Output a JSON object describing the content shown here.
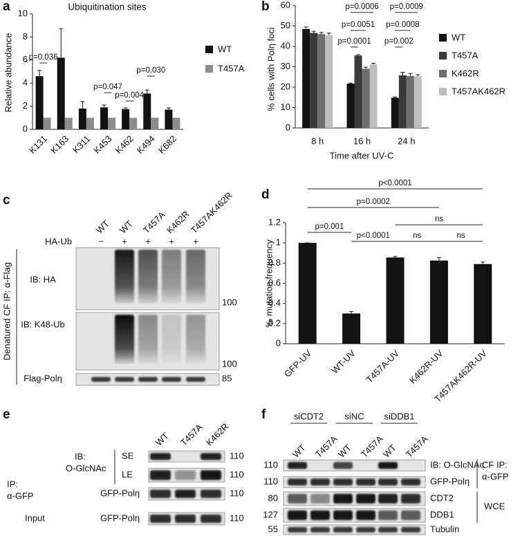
{
  "chart_data": [
    {
      "type": "bar",
      "panel": "a",
      "title": "Ubiquitination sites",
      "y_label": "Relative abundance",
      "categories": [
        "K131",
        "K163",
        "K311",
        "K453",
        "K462",
        "K494",
        "K682"
      ],
      "series": [
        {
          "name": "WT",
          "color": "#111111",
          "values": [
            4.6,
            6.2,
            1.8,
            1.9,
            1.75,
            3.1,
            1.7
          ],
          "errors": [
            0.5,
            2.5,
            0.6,
            0.2,
            0.1,
            0.3,
            0.15
          ]
        },
        {
          "name": "T457A",
          "color": "#8c8c8c",
          "values": [
            1,
            1,
            1,
            1,
            1,
            1,
            1
          ]
        }
      ],
      "ylim": [
        0,
        10
      ],
      "yticks": [
        0,
        2,
        4,
        6,
        8,
        10
      ],
      "annotations": [
        "p=0.036",
        "p=0.047",
        "p=0.004",
        "p=0.030"
      ],
      "legend": "right"
    },
    {
      "type": "bar",
      "panel": "b",
      "y_label": "% cells with Polη foci",
      "x_label": "Time after UV-C",
      "categories": [
        "8 h",
        "16 h",
        "24 h"
      ],
      "series": [
        {
          "name": "WT",
          "color": "#111111",
          "values": [
            48.5,
            21.7,
            14.8
          ],
          "errors": [
            1,
            0.3,
            0.4
          ]
        },
        {
          "name": "T457A",
          "color": "#3a3a3a",
          "values": [
            46.6,
            35.5,
            25.8
          ],
          "errors": [
            0.8,
            0.4,
            1.5
          ]
        },
        {
          "name": "K462R",
          "color": "#6e6e6e",
          "values": [
            46,
            29,
            25.5
          ],
          "errors": [
            0.8,
            0.8,
            1.2
          ]
        },
        {
          "name": "T457AK462R",
          "color": "#bdbdbd",
          "values": [
            45.5,
            31.2,
            25.3
          ],
          "errors": [
            1,
            0.5,
            0.8
          ]
        }
      ],
      "ylim": [
        0,
        60
      ],
      "yticks": [
        0,
        10,
        20,
        30,
        40,
        50,
        60
      ],
      "annotations": [
        "p=0.0006",
        "p=0.0051",
        "p=0.0001",
        "p=0.0009",
        "p=0.0008",
        "p=0.002"
      ],
      "legend": "right"
    },
    {
      "type": "bar",
      "panel": "d",
      "y_label": "‰ mutation frequency",
      "categories": [
        "GFP-UV",
        "WT-UV",
        "T457A-UV",
        "K462R-UV",
        "T457AK462R-UV"
      ],
      "values": [
        1,
        0.3,
        0.855,
        0.825,
        0.79
      ],
      "errors": [
        0,
        0.02,
        0.01,
        0.03,
        0.02
      ],
      "color": "#111111",
      "ylim": [
        0,
        1.2
      ],
      "yticks": [
        0,
        0.2,
        0.4,
        0.6,
        0.8,
        1,
        1.2
      ],
      "annotations": [
        "p<0.0001",
        "p=0.0002",
        "ns",
        "p=0.001",
        "p<0.0001",
        "ns",
        "ns"
      ]
    }
  ],
  "blot_c": {
    "panel": "c",
    "lanes": [
      "WT",
      "WT",
      "T457A",
      "K462R",
      "T457AK462R"
    ],
    "treatment_label": "HA-Ub",
    "treatment": [
      "−",
      "+",
      "+",
      "+",
      "+"
    ],
    "side_label": "Denatured CF IP: α-Flag",
    "rows": [
      {
        "label": "IB: HA",
        "marker": "100"
      },
      {
        "label": "IB: K48-Ub",
        "marker": "100"
      },
      {
        "label": "Flag-Polη",
        "marker": "85"
      }
    ]
  },
  "blot_e": {
    "panel": "e",
    "lanes": [
      "WT",
      "T457A",
      "K462R"
    ],
    "ip_label": [
      "IP:",
      "α-GFP"
    ],
    "ib_label": [
      "IB:",
      "O-GlcNAc"
    ],
    "input_label": "Input",
    "rows": [
      {
        "label": "SE",
        "marker": "110"
      },
      {
        "label": "LE",
        "marker": "110"
      },
      {
        "label": "GFP-Polη",
        "marker": "110"
      },
      {
        "label": "GFP-Polη",
        "marker": "110"
      }
    ]
  },
  "blot_f": {
    "panel": "f",
    "groups": [
      "siCDT2",
      "siNC",
      "siDDB1"
    ],
    "lanes": [
      "WT",
      "T457A",
      "WT",
      "T457A",
      "WT",
      "T457A"
    ],
    "cf_label": [
      "CF IP:",
      "α-GFP"
    ],
    "wce_label": "WCE",
    "rows": [
      {
        "label": "IB: O-GlcNAc",
        "marker": "110"
      },
      {
        "label": "GFP-Polη",
        "marker": "110"
      },
      {
        "label": "CDT2",
        "marker": "80"
      },
      {
        "label": "DDB1",
        "marker": "127"
      },
      {
        "label": "Tubulin",
        "marker": "55"
      }
    ]
  }
}
